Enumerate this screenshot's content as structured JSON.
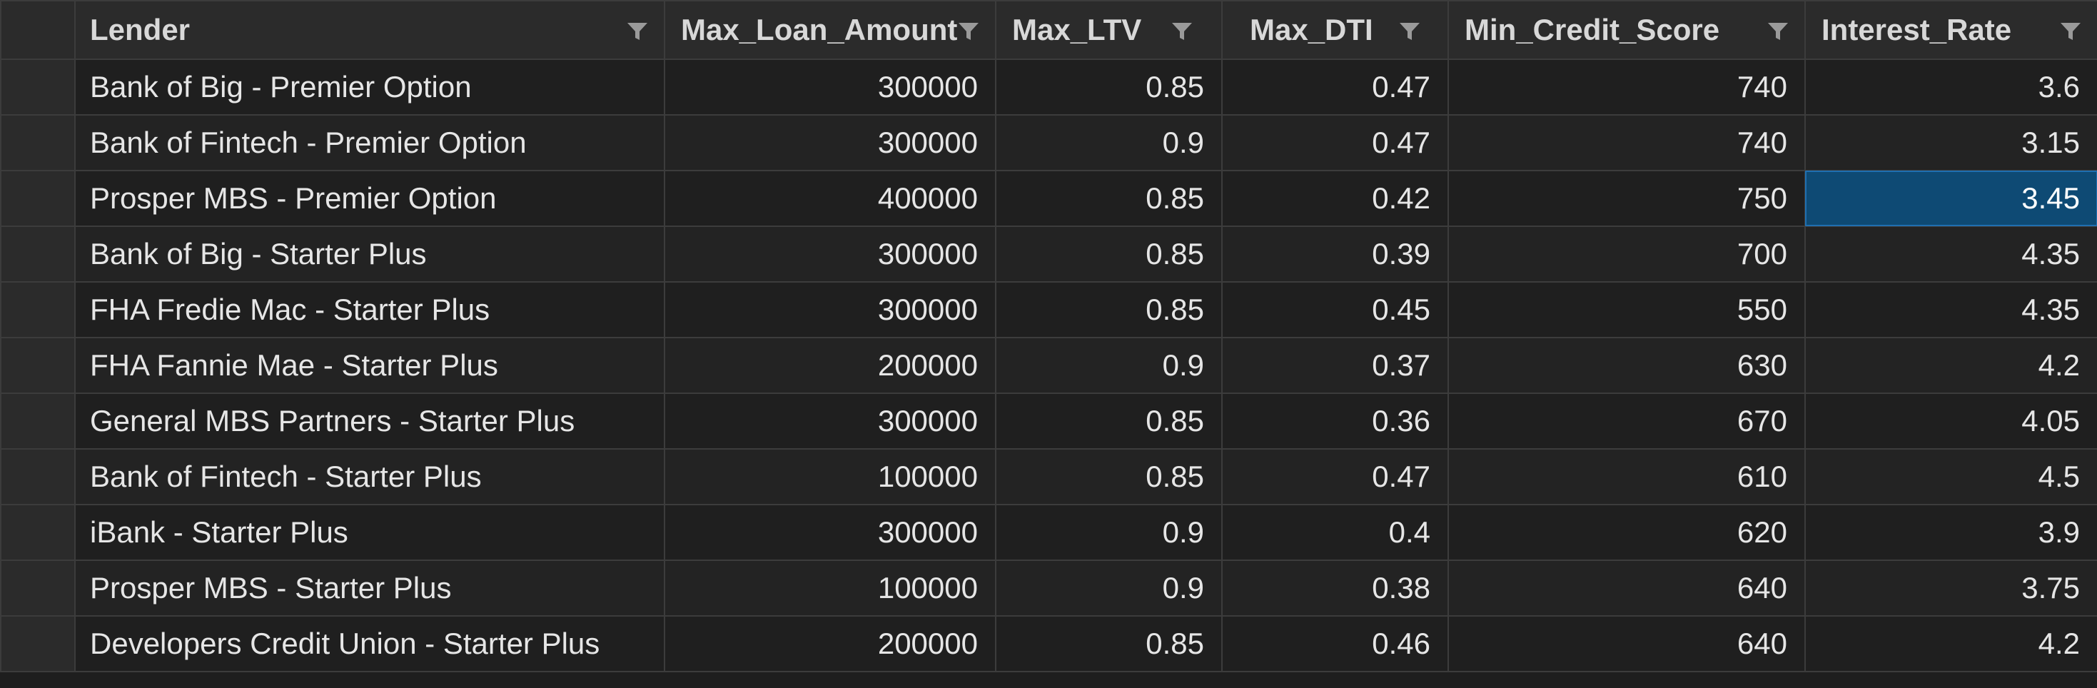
{
  "columns": [
    {
      "label": "Lender"
    },
    {
      "label": "Max_Loan_Amount"
    },
    {
      "label": "Max_LTV"
    },
    {
      "label": "Max_DTI"
    },
    {
      "label": "Min_Credit_Score"
    },
    {
      "label": "Interest_Rate"
    }
  ],
  "rows": [
    [
      "Bank of Big - Premier Option",
      "300000",
      "0.85",
      "0.47",
      "740",
      "3.6"
    ],
    [
      "Bank of Fintech - Premier Option",
      "300000",
      "0.9",
      "0.47",
      "740",
      "3.15"
    ],
    [
      "Prosper MBS - Premier Option",
      "400000",
      "0.85",
      "0.42",
      "750",
      "3.45"
    ],
    [
      "Bank of Big - Starter Plus",
      "300000",
      "0.85",
      "0.39",
      "700",
      "4.35"
    ],
    [
      "FHA Fredie Mac - Starter Plus",
      "300000",
      "0.85",
      "0.45",
      "550",
      "4.35"
    ],
    [
      "FHA Fannie Mae - Starter Plus",
      "200000",
      "0.9",
      "0.37",
      "630",
      "4.2"
    ],
    [
      "General MBS Partners - Starter Plus",
      "300000",
      "0.85",
      "0.36",
      "670",
      "4.05"
    ],
    [
      "Bank of Fintech - Starter Plus",
      "100000",
      "0.85",
      "0.47",
      "610",
      "4.5"
    ],
    [
      "iBank - Starter Plus",
      "300000",
      "0.9",
      "0.4",
      "620",
      "3.9"
    ],
    [
      "Prosper MBS - Starter Plus",
      "100000",
      "0.9",
      "0.38",
      "640",
      "3.75"
    ],
    [
      "Developers Credit Union - Starter Plus",
      "200000",
      "0.85",
      "0.46",
      "640",
      "4.2"
    ]
  ],
  "selected_cell": {
    "row": 2,
    "column": 5
  },
  "colors": {
    "background": "#1e1e1e",
    "header_background": "#2b2b2b",
    "grid_line": "#3c3c3c",
    "selection": "#0e4a74"
  },
  "icons": {
    "column_filter": "filter-funnel-icon"
  }
}
